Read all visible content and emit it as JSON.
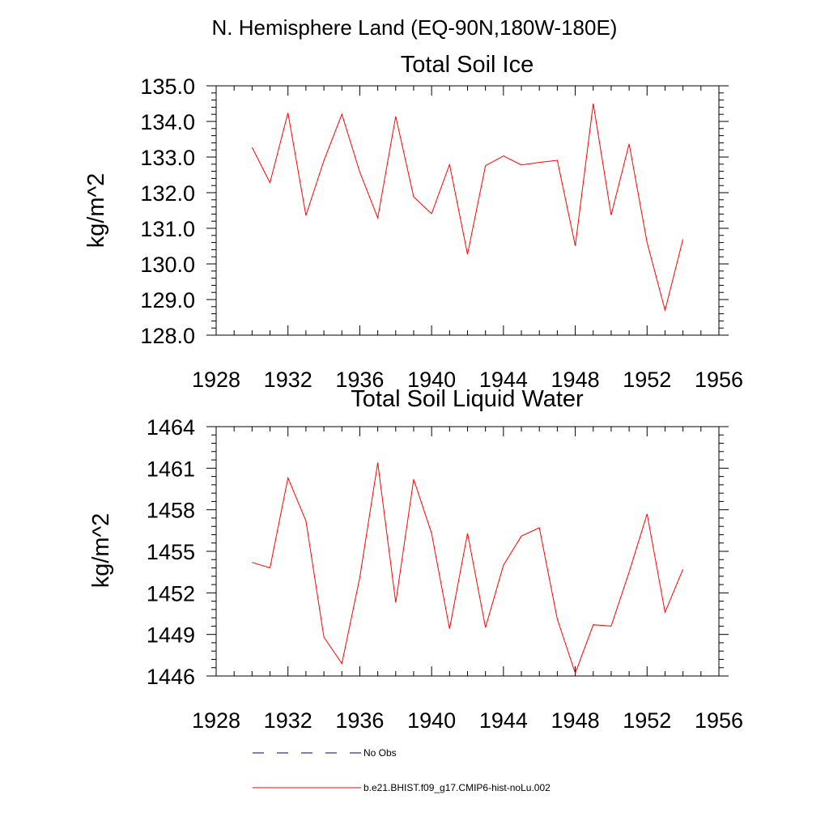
{
  "figure": {
    "title": "N. Hemisphere Land (EQ-90N,180W-180E)"
  },
  "chart_data": [
    {
      "type": "line",
      "title": "Total Soil Ice",
      "xlabel": "",
      "ylabel": "kg/m^2",
      "xlim": [
        1928,
        1956
      ],
      "ylim": [
        128.0,
        135.0
      ],
      "xticks": [
        1928,
        1932,
        1936,
        1940,
        1944,
        1948,
        1952,
        1956
      ],
      "yticks": [
        128.0,
        129.0,
        130.0,
        131.0,
        132.0,
        133.0,
        134.0,
        135.0
      ],
      "ytick_decimals": 1,
      "grid": false,
      "series": [
        {
          "name": "b.e21.BHIST.f09_g17.CMIP6-hist-noLu.002",
          "color": "#ff0000",
          "x": [
            1930,
            1931,
            1932,
            1933,
            1934,
            1935,
            1936,
            1937,
            1938,
            1939,
            1940,
            1941,
            1942,
            1943,
            1944,
            1945,
            1946,
            1947,
            1948,
            1949,
            1950,
            1951,
            1952,
            1953,
            1954
          ],
          "values": [
            133.27,
            132.28,
            134.24,
            131.36,
            132.9,
            134.2,
            132.58,
            131.29,
            134.14,
            131.88,
            131.41,
            132.79,
            130.27,
            132.76,
            133.03,
            132.78,
            132.85,
            132.91,
            130.51,
            134.5,
            131.37,
            133.37,
            130.6,
            128.7,
            130.69
          ]
        }
      ]
    },
    {
      "type": "line",
      "title": "Total Soil Liquid Water",
      "xlabel": "",
      "ylabel": "kg/m^2",
      "xlim": [
        1928,
        1956
      ],
      "ylim": [
        1446,
        1464
      ],
      "xticks": [
        1928,
        1932,
        1936,
        1940,
        1944,
        1948,
        1952,
        1956
      ],
      "yticks": [
        1446,
        1449,
        1452,
        1455,
        1458,
        1461,
        1464
      ],
      "ytick_decimals": 0,
      "grid": false,
      "series": [
        {
          "name": "b.e21.BHIST.f09_g17.CMIP6-hist-noLu.002",
          "color": "#ff0000",
          "x": [
            1930,
            1931,
            1932,
            1933,
            1934,
            1935,
            1936,
            1937,
            1938,
            1939,
            1940,
            1941,
            1942,
            1943,
            1944,
            1945,
            1946,
            1947,
            1948,
            1949,
            1950,
            1951,
            1952,
            1953,
            1954
          ],
          "values": [
            1454.2,
            1453.8,
            1460.3,
            1457.2,
            1448.8,
            1446.9,
            1453.1,
            1461.4,
            1451.3,
            1460.2,
            1456.3,
            1449.4,
            1456.3,
            1449.5,
            1454.0,
            1456.1,
            1456.7,
            1450.1,
            1446.2,
            1449.7,
            1449.6,
            1453.5,
            1457.7,
            1450.6,
            1453.7
          ]
        }
      ]
    }
  ],
  "legend": {
    "placement": "bottom",
    "items": [
      {
        "label": "No Obs",
        "style": "dashed",
        "color": "#000080"
      },
      {
        "label": "b.e21.BHIST.f09_g17.CMIP6-hist-noLu.002",
        "style": "solid",
        "color": "#ff0000"
      }
    ]
  }
}
